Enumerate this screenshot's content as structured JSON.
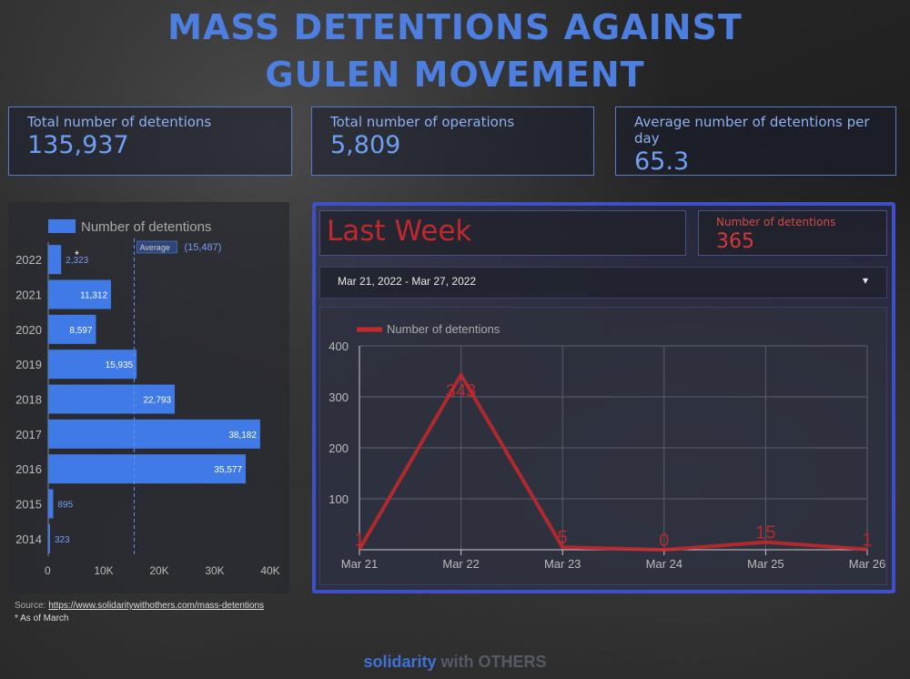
{
  "title_line1": "MASS DETENTIONS AGAINST",
  "title_line2": "GULEN MOVEMENT",
  "kpis": [
    {
      "label": "Total number of detentions",
      "value": "135,937"
    },
    {
      "label": "Total number of operations",
      "value": "5,809"
    },
    {
      "label": "Average number of detentions per day",
      "value": "65.3"
    }
  ],
  "colors": {
    "bar": "#3f7ae6",
    "line": "#c8282c",
    "accent": "#4d7fe0"
  },
  "chart_data": [
    {
      "type": "bar",
      "orientation": "horizontal",
      "legend": "Number of detentions",
      "categories": [
        "2022",
        "2021",
        "2020",
        "2019",
        "2018",
        "2017",
        "2016",
        "2015",
        "2014"
      ],
      "values": [
        2323,
        11312,
        8597,
        15935,
        22793,
        38182,
        35577,
        895,
        323
      ],
      "value_labels": [
        "2,323",
        "11,312",
        "8,597",
        "15,935",
        "22,793",
        "38,182",
        "35,577",
        "895",
        "323"
      ],
      "star_label": "*",
      "average": {
        "label": "Average",
        "value": 15487,
        "value_label": "(15,487)"
      },
      "xlim": [
        0,
        40000
      ],
      "xticks": [
        0,
        10000,
        20000,
        30000,
        40000
      ],
      "xtick_labels": [
        "0",
        "10K",
        "20K",
        "30K",
        "40K"
      ]
    },
    {
      "type": "line",
      "title": "Last Week",
      "legend": "Number of detentions",
      "x": [
        "Mar 21",
        "Mar 22",
        "Mar 23",
        "Mar 24",
        "Mar 25",
        "Mar 26"
      ],
      "values": [
        1,
        343,
        5,
        0,
        15,
        1
      ],
      "ylim": [
        0,
        400
      ],
      "yticks": [
        100,
        200,
        300,
        400
      ],
      "grid": true
    }
  ],
  "summary": {
    "label": "Number of detentions",
    "value": "365"
  },
  "date_range": "Mar 21, 2022 - Mar 27, 2022",
  "dropdown_icon": "▾",
  "source_label": "Source:",
  "source_url": "https://www.solidaritywithothers.com/mass-detentions",
  "note": "* As of March",
  "brand": {
    "part1": "solidarity",
    "part2": "with OTHERS"
  }
}
